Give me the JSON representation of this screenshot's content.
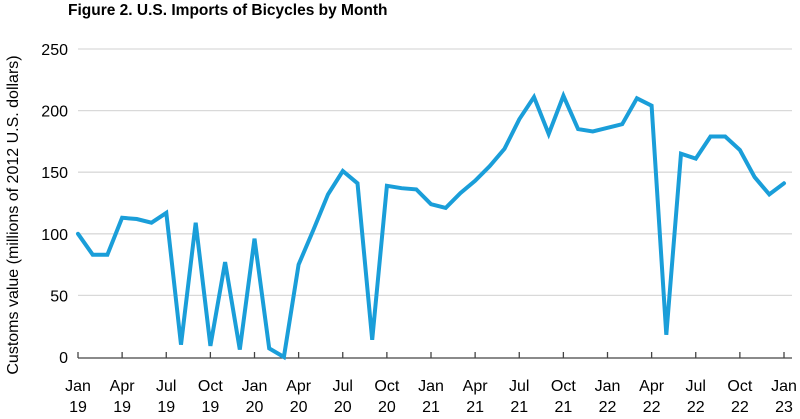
{
  "chart_data": {
    "type": "line",
    "title": "Figure 2. U.S. Imports of Bicycles by Month",
    "xlabel": "",
    "ylabel": "Customs value (millions of 2012 U.S. dollars)",
    "ylim": [
      0,
      250
    ],
    "yticks": [
      0,
      50,
      100,
      150,
      200,
      250
    ],
    "grid": "horizontal",
    "color": "#1a9ed9",
    "xtick_labels": [
      [
        "Jan",
        "19"
      ],
      [
        "Apr",
        "19"
      ],
      [
        "Jul",
        "19"
      ],
      [
        "Oct",
        "19"
      ],
      [
        "Jan",
        "20"
      ],
      [
        "Apr",
        "20"
      ],
      [
        "Jul",
        "20"
      ],
      [
        "Oct",
        "20"
      ],
      [
        "Jan",
        "21"
      ],
      [
        "Apr",
        "21"
      ],
      [
        "Jul",
        "21"
      ],
      [
        "Oct",
        "21"
      ],
      [
        "Jan",
        "22"
      ],
      [
        "Apr",
        "22"
      ],
      [
        "Jul",
        "22"
      ],
      [
        "Oct",
        "22"
      ],
      [
        "Jan",
        "23"
      ]
    ],
    "x": [
      "2019-01",
      "2019-02",
      "2019-03",
      "2019-04",
      "2019-05",
      "2019-06",
      "2019-07",
      "2019-08",
      "2019-09",
      "2019-10",
      "2019-11",
      "2019-12",
      "2020-01",
      "2020-02",
      "2020-03",
      "2020-04",
      "2020-05",
      "2020-06",
      "2020-07",
      "2020-08",
      "2020-09",
      "2020-10",
      "2020-11",
      "2020-12",
      "2021-01",
      "2021-02",
      "2021-03",
      "2021-04",
      "2021-05",
      "2021-06",
      "2021-07",
      "2021-08",
      "2021-09",
      "2021-10",
      "2021-11",
      "2021-12",
      "2022-01",
      "2022-02",
      "2022-03",
      "2022-04",
      "2022-05",
      "2022-06",
      "2022-07",
      "2022-08",
      "2022-09",
      "2022-10",
      "2022-11",
      "2022-12",
      "2023-01"
    ],
    "values": [
      100,
      83,
      83,
      113,
      112,
      109,
      117,
      10,
      109,
      9,
      77,
      6,
      96,
      7,
      0,
      75,
      103,
      132,
      151,
      141,
      14,
      139,
      137,
      136,
      124,
      121,
      133,
      143,
      155,
      169,
      193,
      211,
      181,
      212,
      185,
      183,
      186,
      189,
      210,
      204,
      18,
      165,
      161,
      179,
      179,
      168,
      146,
      132,
      141
    ]
  }
}
